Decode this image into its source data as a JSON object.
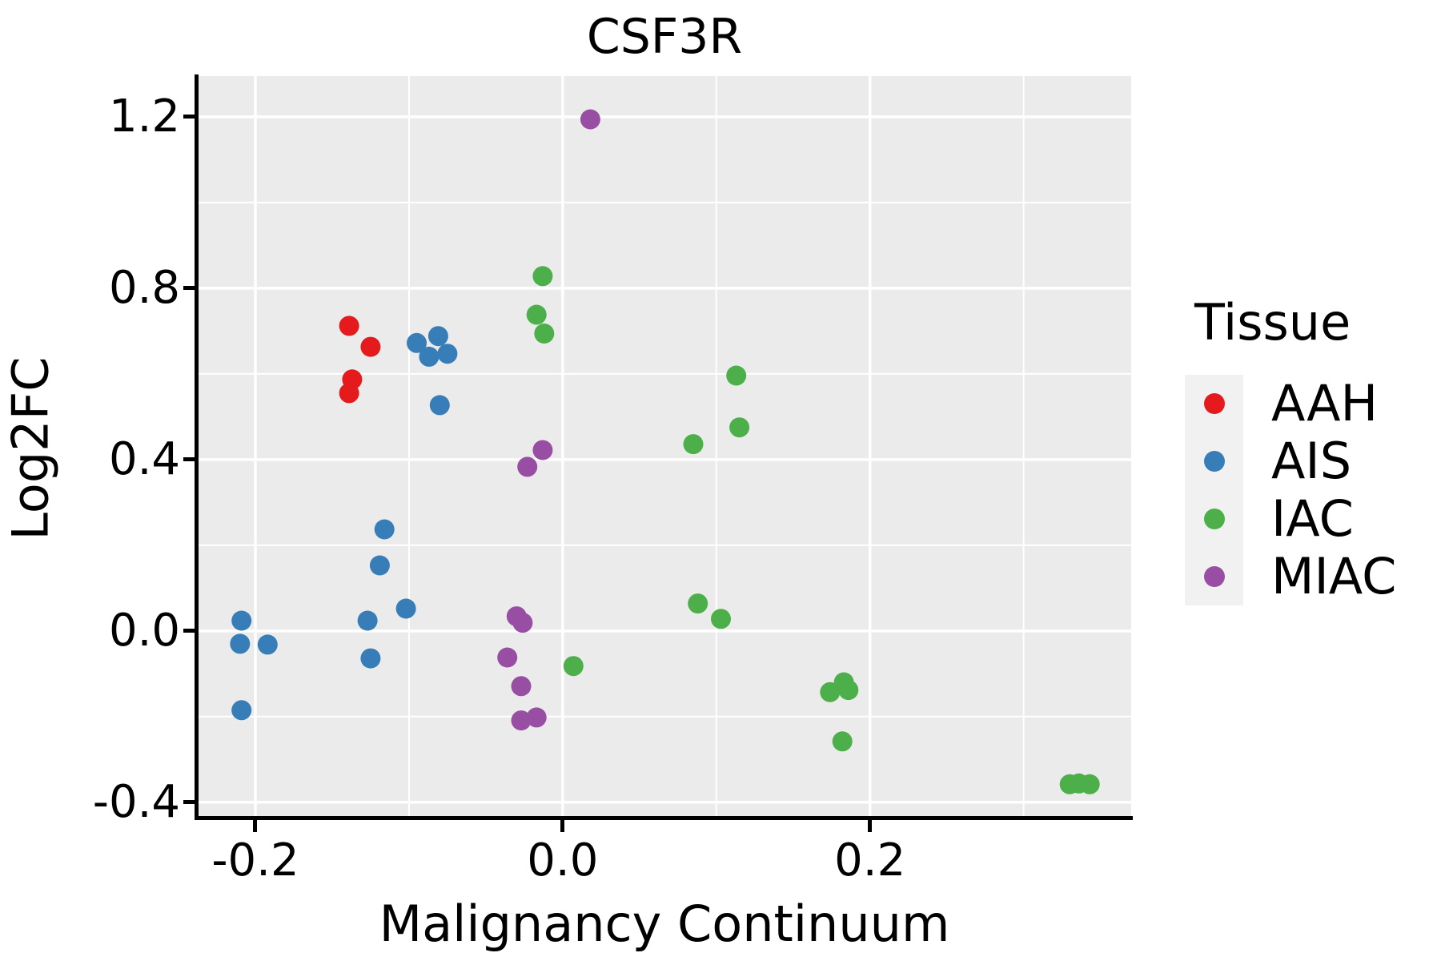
{
  "chart_data": {
    "type": "scatter",
    "title": "CSF3R",
    "xlabel": "Malignancy Continuum",
    "ylabel": "Log2FC",
    "legend_title": "Tissue",
    "legend_position": "right",
    "grid": true,
    "panel_background": "#EBEBEB",
    "gridline_color": "#FFFFFF",
    "xlim": [
      -0.2375,
      0.37
    ],
    "ylim": [
      -0.434,
      1.295
    ],
    "x_major_ticks": [
      -0.2,
      0.0,
      0.2
    ],
    "x_tick_labels": [
      "-0.2",
      "0.0",
      "0.2"
    ],
    "x_minor_ticks": [
      -0.1,
      0.1,
      0.3
    ],
    "y_major_ticks": [
      1.2,
      0.8,
      0.4,
      0.0,
      -0.4
    ],
    "y_tick_labels": [
      "1.2",
      "0.8",
      "0.4",
      "0.0",
      "-0.4"
    ],
    "y_minor_ticks": [
      1.0,
      0.6,
      0.2,
      -0.2
    ],
    "series": [
      {
        "name": "AAH",
        "color": "#E41A1C",
        "points": [
          [
            -0.139,
            0.712
          ],
          [
            -0.125,
            0.663
          ],
          [
            -0.137,
            0.587
          ],
          [
            -0.139,
            0.555
          ]
        ]
      },
      {
        "name": "AIS",
        "color": "#377EB8",
        "points": [
          [
            -0.095,
            0.672
          ],
          [
            -0.081,
            0.688
          ],
          [
            -0.087,
            0.64
          ],
          [
            -0.075,
            0.647
          ],
          [
            -0.08,
            0.527
          ],
          [
            -0.116,
            0.237
          ],
          [
            -0.119,
            0.153
          ],
          [
            -0.209,
            0.024
          ],
          [
            -0.21,
            -0.03
          ],
          [
            -0.192,
            -0.032
          ],
          [
            -0.127,
            0.024
          ],
          [
            -0.102,
            0.052
          ],
          [
            -0.125,
            -0.064
          ],
          [
            -0.209,
            -0.185
          ]
        ]
      },
      {
        "name": "IAC",
        "color": "#4DAF4A",
        "points": [
          [
            -0.013,
            0.828
          ],
          [
            -0.017,
            0.738
          ],
          [
            -0.012,
            0.694
          ],
          [
            0.113,
            0.596
          ],
          [
            0.115,
            0.475
          ],
          [
            0.085,
            0.436
          ],
          [
            0.088,
            0.064
          ],
          [
            0.103,
            0.028
          ],
          [
            0.007,
            -0.082
          ],
          [
            0.174,
            -0.143
          ],
          [
            0.183,
            -0.12
          ],
          [
            0.186,
            -0.138
          ],
          [
            0.182,
            -0.258
          ],
          [
            0.33,
            -0.358
          ],
          [
            0.336,
            -0.356
          ],
          [
            0.343,
            -0.358
          ]
        ]
      },
      {
        "name": "MIAC",
        "color": "#984EA3",
        "points": [
          [
            0.018,
            1.194
          ],
          [
            -0.013,
            0.422
          ],
          [
            -0.023,
            0.383
          ],
          [
            -0.03,
            0.034
          ],
          [
            -0.026,
            0.019
          ],
          [
            -0.036,
            -0.062
          ],
          [
            -0.027,
            -0.129
          ],
          [
            -0.027,
            -0.209
          ],
          [
            -0.017,
            -0.202
          ]
        ]
      }
    ]
  }
}
